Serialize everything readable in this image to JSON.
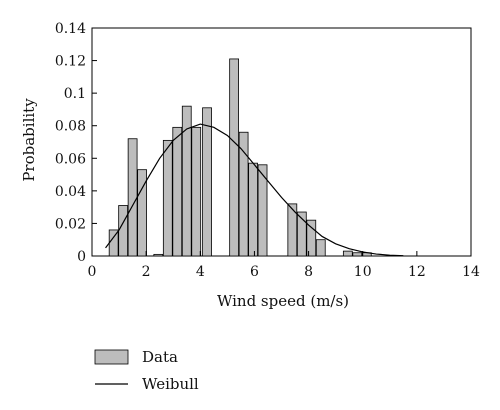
{
  "chart_data": {
    "type": "bar",
    "title": "",
    "xlabel": "Wind speed (m/s)",
    "ylabel": "Probability",
    "xlim": [
      0,
      14
    ],
    "ylim": [
      0,
      0.14
    ],
    "xticks": [
      0,
      2,
      4,
      6,
      8,
      10,
      12,
      14
    ],
    "xtick_labels": [
      "0",
      "2",
      "4",
      "6",
      "8",
      "10",
      "12",
      "14"
    ],
    "yticks": [
      0,
      0.02,
      0.04,
      0.06,
      0.08,
      0.1,
      0.12,
      0.14
    ],
    "ytick_labels": [
      "0",
      "0.02",
      "0.04",
      "0.06",
      "0.08",
      "0.1",
      "0.12",
      "0.14"
    ],
    "grid": false,
    "legend_position": "below-left",
    "bar_width": 0.33,
    "series": [
      {
        "name": "Data",
        "kind": "bar",
        "color": "#bdbdbd",
        "x": [
          0.8,
          1.15,
          1.5,
          1.85,
          2.45,
          2.8,
          3.15,
          3.5,
          3.85,
          4.25,
          5.25,
          5.6,
          5.95,
          6.3,
          7.4,
          7.75,
          8.1,
          8.45,
          9.45,
          9.8,
          10.15
        ],
        "values": [
          0.016,
          0.031,
          0.072,
          0.053,
          0.001,
          0.071,
          0.079,
          0.092,
          0.079,
          0.091,
          0.121,
          0.076,
          0.057,
          0.056,
          0.032,
          0.027,
          0.022,
          0.01,
          0.003,
          0.002,
          0.002
        ]
      },
      {
        "name": "Weibull",
        "kind": "line",
        "color": "#000000",
        "x": [
          0.5,
          1.0,
          1.5,
          2.0,
          2.5,
          3.0,
          3.5,
          4.0,
          4.5,
          5.0,
          5.5,
          6.0,
          6.5,
          7.0,
          7.5,
          8.0,
          8.5,
          9.0,
          9.5,
          10.0,
          10.5,
          11.0,
          11.5
        ],
        "values": [
          0.005,
          0.016,
          0.031,
          0.046,
          0.06,
          0.071,
          0.078,
          0.081,
          0.079,
          0.074,
          0.066,
          0.056,
          0.046,
          0.036,
          0.027,
          0.019,
          0.012,
          0.0075,
          0.0045,
          0.0025,
          0.0012,
          0.0005,
          0.0002
        ]
      }
    ]
  }
}
